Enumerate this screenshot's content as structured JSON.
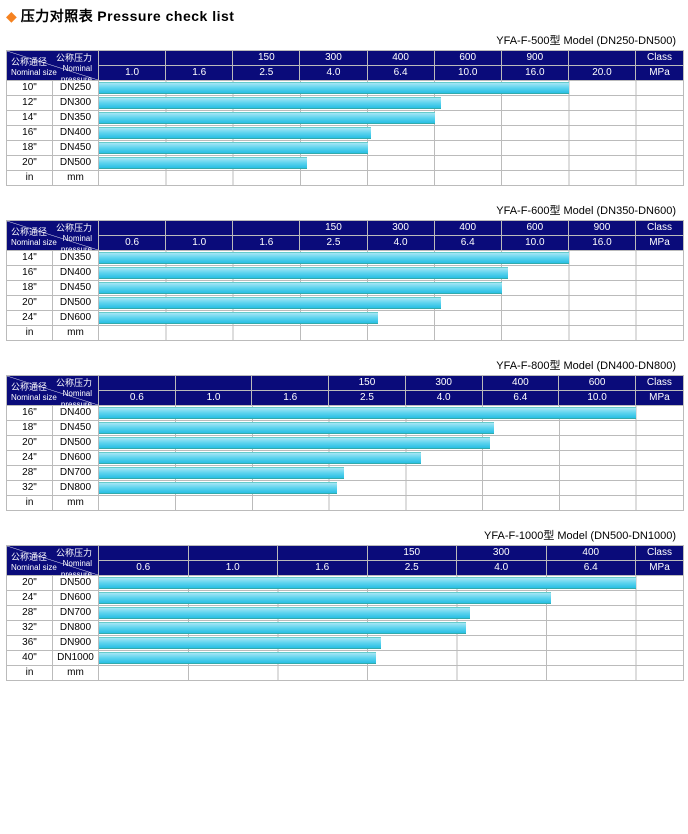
{
  "title_cn": "压力对照表",
  "title_en": "Pressure check list",
  "header_labels": {
    "nominal_pressure_cn": "公称压力",
    "nominal_pressure_en1": "Nominal",
    "nominal_pressure_en2": "pressure",
    "nominal_size_cn": "公称通径",
    "nominal_size_en": "Nominal size",
    "class": "Class",
    "mpa": "MPa",
    "in": "in",
    "mm": "mm"
  },
  "charts": [
    {
      "model": "YFA-F-500型  Model (DN250-DN500)",
      "class_row": [
        "",
        "",
        "150",
        "300",
        "400",
        "600",
        "900",
        ""
      ],
      "mpa_row": [
        "1.0",
        "1.6",
        "2.5",
        "4.0",
        "6.4",
        "10.0",
        "16.0",
        "20.0"
      ],
      "unit_cols": 8,
      "rows": [
        {
          "in": "10\"",
          "mm": "DN250",
          "bar": 7.0
        },
        {
          "in": "12\"",
          "mm": "DN300",
          "bar": 5.1
        },
        {
          "in": "14\"",
          "mm": "DN350",
          "bar": 5.0
        },
        {
          "in": "16\"",
          "mm": "DN400",
          "bar": 4.05
        },
        {
          "in": "18\"",
          "mm": "DN450",
          "bar": 4.0
        },
        {
          "in": "20\"",
          "mm": "DN500",
          "bar": 3.1
        }
      ]
    },
    {
      "model": "YFA-F-600型  Model (DN350-DN600)",
      "class_row": [
        "",
        "",
        "",
        "150",
        "300",
        "400",
        "600",
        "900"
      ],
      "mpa_row": [
        "0.6",
        "1.0",
        "1.6",
        "2.5",
        "4.0",
        "6.4",
        "10.0",
        "16.0"
      ],
      "unit_cols": 8,
      "rows": [
        {
          "in": "14\"",
          "mm": "DN350",
          "bar": 7.0
        },
        {
          "in": "16\"",
          "mm": "DN400",
          "bar": 6.1
        },
        {
          "in": "18\"",
          "mm": "DN450",
          "bar": 6.0
        },
        {
          "in": "20\"",
          "mm": "DN500",
          "bar": 5.1
        },
        {
          "in": "24\"",
          "mm": "DN600",
          "bar": 4.15
        }
      ]
    },
    {
      "model": "YFA-F-800型  Model (DN400-DN800)",
      "class_row": [
        "",
        "",
        "",
        "150",
        "300",
        "400",
        "600"
      ],
      "mpa_row": [
        "0.6",
        "1.0",
        "1.6",
        "2.5",
        "4.0",
        "6.4",
        "10.0"
      ],
      "unit_cols": 7,
      "rows": [
        {
          "in": "16\"",
          "mm": "DN400",
          "bar": 7.0
        },
        {
          "in": "18\"",
          "mm": "DN450",
          "bar": 5.15
        },
        {
          "in": "20\"",
          "mm": "DN500",
          "bar": 5.1
        },
        {
          "in": "24\"",
          "mm": "DN600",
          "bar": 4.2
        },
        {
          "in": "28\"",
          "mm": "DN700",
          "bar": 3.2
        },
        {
          "in": "32\"",
          "mm": "DN800",
          "bar": 3.1
        }
      ]
    },
    {
      "model": "YFA-F-1000型  Model (DN500-DN1000)",
      "class_row": [
        "",
        "",
        "",
        "150",
        "300",
        "400"
      ],
      "mpa_row": [
        "0.6",
        "1.0",
        "1.6",
        "2.5",
        "4.0",
        "6.4"
      ],
      "unit_cols": 6,
      "rows": [
        {
          "in": "20\"",
          "mm": "DN500",
          "bar": 6.0
        },
        {
          "in": "24\"",
          "mm": "DN600",
          "bar": 5.05
        },
        {
          "in": "28\"",
          "mm": "DN700",
          "bar": 4.15
        },
        {
          "in": "32\"",
          "mm": "DN800",
          "bar": 4.1
        },
        {
          "in": "36\"",
          "mm": "DN900",
          "bar": 3.15
        },
        {
          "in": "40\"",
          "mm": "DN1000",
          "bar": 3.1
        }
      ]
    }
  ],
  "colors": {
    "header_bg": "#0a0b7a",
    "bar_gradient_top": "#a6e6f5",
    "bar_gradient_bot": "#29bfe4",
    "diamond": "#f58220",
    "border": "#bbbbbb"
  },
  "layout": {
    "label_col_w": 46,
    "extra_col_w": 48
  }
}
